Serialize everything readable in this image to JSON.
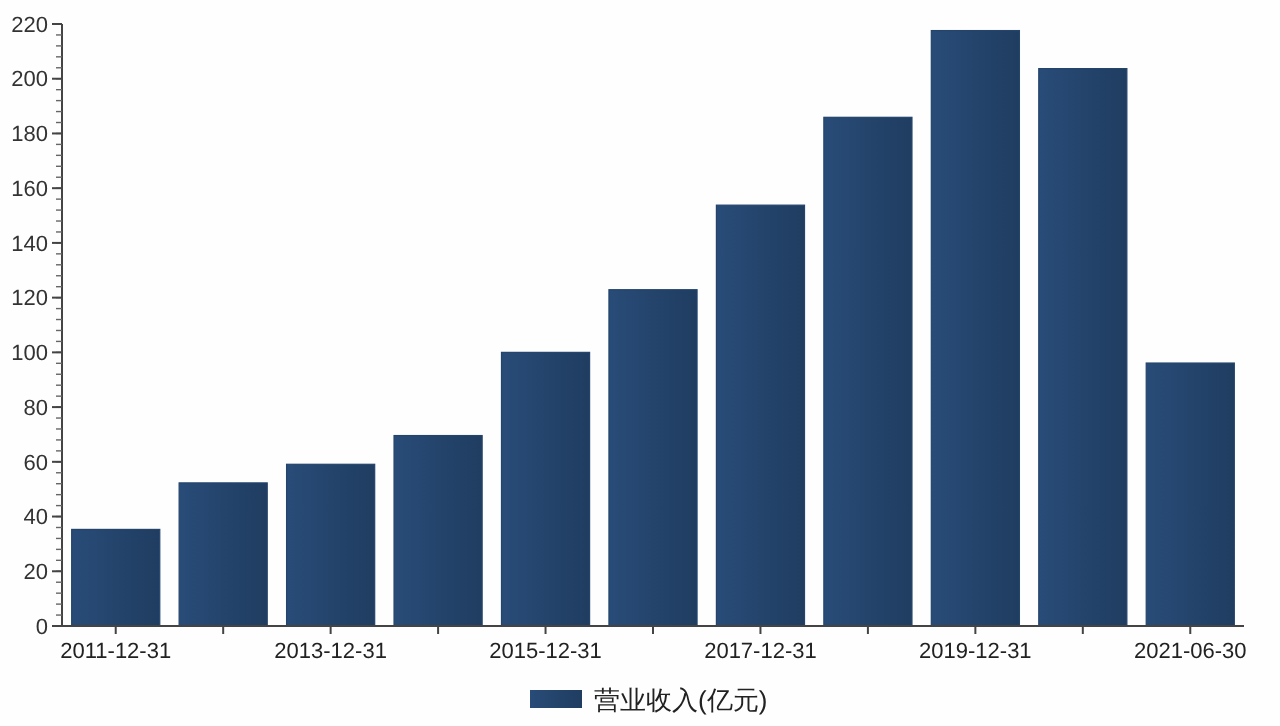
{
  "chart_data": {
    "type": "bar",
    "categories": [
      "2011-12-31",
      null,
      "2013-12-31",
      null,
      "2015-12-31",
      null,
      "2017-12-31",
      null,
      "2019-12-31",
      null,
      "2021-06-30"
    ],
    "series": [
      {
        "name": "营业收入(亿元)",
        "color": "#24446c",
        "values": [
          35.3,
          52.3,
          59.1,
          69.6,
          100,
          122.9,
          153.8,
          185.9,
          217.6,
          203.7,
          96.1
        ]
      }
    ],
    "ylim": [
      0,
      220
    ],
    "yticks": [
      0,
      20,
      40,
      60,
      80,
      100,
      120,
      140,
      160,
      180,
      200,
      220
    ],
    "grid": false,
    "legend": "bottom"
  }
}
